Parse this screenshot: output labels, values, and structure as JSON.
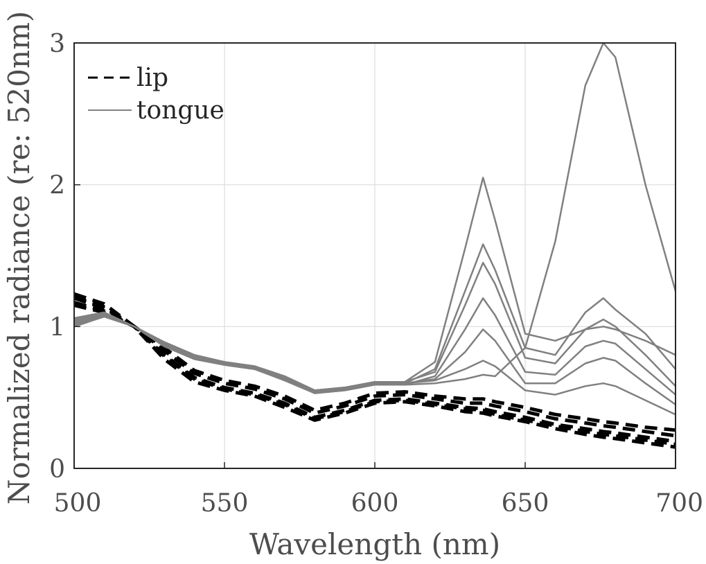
{
  "chart_data": {
    "type": "line",
    "xlabel": "Wavelength (nm)",
    "ylabel": "Normalized radiance (re: 520nm)",
    "xlim": [
      500,
      700
    ],
    "ylim": [
      0,
      3
    ],
    "xticks": [
      500,
      550,
      600,
      650,
      700
    ],
    "yticks": [
      0,
      1,
      2,
      3
    ],
    "grid": true,
    "legend_position": "top-left",
    "legend": [
      {
        "label": "lip",
        "style": "dashed",
        "color": "#000000"
      },
      {
        "label": "tongue",
        "style": "solid",
        "color": "#808080"
      }
    ],
    "x": [
      500,
      510,
      520,
      530,
      540,
      550,
      560,
      570,
      580,
      590,
      600,
      610,
      620,
      630,
      636,
      640,
      650,
      660,
      670,
      676,
      680,
      690,
      700
    ],
    "series": [
      {
        "name": "lip",
        "color": "#000000",
        "dash": true,
        "values": [
          1.2,
          1.13,
          1.0,
          0.8,
          0.64,
          0.57,
          0.53,
          0.46,
          0.36,
          0.41,
          0.48,
          0.49,
          0.46,
          0.43,
          0.42,
          0.4,
          0.36,
          0.31,
          0.28,
          0.26,
          0.25,
          0.22,
          0.19
        ]
      },
      {
        "name": "lip",
        "color": "#000000",
        "dash": true,
        "values": [
          1.23,
          1.16,
          1.0,
          0.77,
          0.61,
          0.55,
          0.51,
          0.43,
          0.34,
          0.39,
          0.46,
          0.47,
          0.44,
          0.4,
          0.39,
          0.37,
          0.33,
          0.28,
          0.24,
          0.22,
          0.21,
          0.18,
          0.15
        ]
      },
      {
        "name": "lip",
        "color": "#000000",
        "dash": true,
        "values": [
          1.17,
          1.11,
          1.0,
          0.83,
          0.67,
          0.6,
          0.56,
          0.49,
          0.39,
          0.44,
          0.51,
          0.52,
          0.49,
          0.46,
          0.46,
          0.44,
          0.4,
          0.35,
          0.32,
          0.3,
          0.29,
          0.26,
          0.23
        ]
      },
      {
        "name": "lip",
        "color": "#000000",
        "dash": true,
        "values": [
          1.21,
          1.14,
          1.0,
          0.79,
          0.63,
          0.56,
          0.52,
          0.45,
          0.35,
          0.4,
          0.47,
          0.48,
          0.45,
          0.42,
          0.41,
          0.38,
          0.34,
          0.3,
          0.26,
          0.24,
          0.23,
          0.2,
          0.17
        ]
      },
      {
        "name": "lip",
        "color": "#000000",
        "dash": true,
        "values": [
          1.15,
          1.1,
          1.0,
          0.85,
          0.69,
          0.62,
          0.58,
          0.51,
          0.41,
          0.46,
          0.53,
          0.54,
          0.51,
          0.49,
          0.49,
          0.47,
          0.43,
          0.38,
          0.35,
          0.33,
          0.32,
          0.29,
          0.27
        ]
      },
      {
        "name": "tongue",
        "color": "#808080",
        "dash": false,
        "values": [
          1.0,
          1.07,
          1.0,
          0.89,
          0.8,
          0.75,
          0.72,
          0.65,
          0.55,
          0.57,
          0.61,
          0.6,
          0.62,
          0.7,
          0.76,
          0.72,
          0.55,
          0.52,
          0.58,
          0.6,
          0.58,
          0.48,
          0.38
        ]
      },
      {
        "name": "tongue",
        "color": "#808080",
        "dash": false,
        "values": [
          1.02,
          1.08,
          1.0,
          0.88,
          0.79,
          0.74,
          0.71,
          0.64,
          0.54,
          0.56,
          0.6,
          0.6,
          0.63,
          0.82,
          0.98,
          0.9,
          0.6,
          0.6,
          0.74,
          0.78,
          0.76,
          0.6,
          0.45
        ]
      },
      {
        "name": "tongue",
        "color": "#808080",
        "dash": false,
        "values": [
          1.05,
          1.09,
          1.0,
          0.87,
          0.78,
          0.73,
          0.7,
          0.63,
          0.53,
          0.55,
          0.59,
          0.59,
          0.65,
          0.98,
          1.2,
          1.08,
          0.68,
          0.66,
          0.86,
          0.9,
          0.88,
          0.7,
          0.52
        ]
      },
      {
        "name": "tongue",
        "color": "#808080",
        "dash": false,
        "values": [
          1.03,
          1.08,
          1.0,
          0.88,
          0.79,
          0.75,
          0.72,
          0.64,
          0.55,
          0.56,
          0.61,
          0.61,
          0.68,
          1.15,
          1.45,
          1.3,
          0.78,
          0.74,
          0.98,
          1.05,
          1.0,
          0.8,
          0.58
        ]
      },
      {
        "name": "tongue",
        "color": "#808080",
        "dash": false,
        "values": [
          1.04,
          1.09,
          1.0,
          0.87,
          0.78,
          0.74,
          0.71,
          0.63,
          0.54,
          0.56,
          0.6,
          0.6,
          0.7,
          1.25,
          1.58,
          1.4,
          0.85,
          0.8,
          1.1,
          1.2,
          1.12,
          0.95,
          0.7
        ]
      },
      {
        "name": "tongue",
        "color": "#808080",
        "dash": false,
        "values": [
          1.01,
          1.07,
          1.0,
          0.89,
          0.8,
          0.75,
          0.72,
          0.65,
          0.55,
          0.57,
          0.61,
          0.61,
          0.75,
          1.55,
          2.05,
          1.75,
          0.95,
          0.9,
          0.98,
          1.0,
          0.98,
          0.9,
          0.8
        ]
      },
      {
        "name": "tongue",
        "color": "#808080",
        "dash": false,
        "values": [
          1.06,
          1.1,
          1.0,
          0.86,
          0.77,
          0.73,
          0.7,
          0.62,
          0.53,
          0.55,
          0.59,
          0.59,
          0.6,
          0.63,
          0.66,
          0.65,
          0.85,
          1.6,
          2.7,
          3.0,
          2.9,
          2.0,
          1.25
        ]
      }
    ]
  }
}
